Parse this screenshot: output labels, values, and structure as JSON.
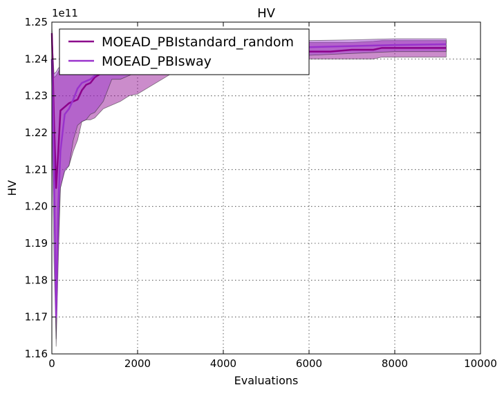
{
  "chart_data": {
    "type": "line",
    "title": "HV",
    "xlabel": "Evaluations",
    "ylabel": "HV",
    "y_offset_text": "1e11",
    "xlim": [
      0,
      10000
    ],
    "ylim": [
      1.16,
      1.25
    ],
    "x_ticks": [
      0,
      2000,
      4000,
      6000,
      8000,
      10000
    ],
    "x_tick_labels": [
      "0",
      "2000",
      "4000",
      "6000",
      "8000",
      "10000"
    ],
    "y_ticks": [
      1.16,
      1.17,
      1.18,
      1.19,
      1.2,
      1.21,
      1.22,
      1.23,
      1.24,
      1.25
    ],
    "y_tick_labels": [
      "1.16",
      "1.17",
      "1.18",
      "1.19",
      "1.20",
      "1.21",
      "1.22",
      "1.23",
      "1.24",
      "1.25"
    ],
    "grid": true,
    "legend_position": "top-left",
    "series": [
      {
        "name": "MOEAD_PBIstandard_random",
        "color": "#8b008b",
        "band_color": "#8b008b",
        "x": [
          0,
          50,
          100,
          150,
          200,
          300,
          400,
          500,
          600,
          700,
          800,
          900,
          1000,
          1200,
          1400,
          1600,
          1800,
          2000,
          3000,
          4000,
          5000,
          5800,
          6000,
          6500,
          7000,
          7500,
          7700,
          8000,
          8500,
          9200
        ],
        "y": [
          1.247,
          1.223,
          1.205,
          1.215,
          1.226,
          1.227,
          1.228,
          1.2285,
          1.229,
          1.2315,
          1.233,
          1.2335,
          1.235,
          1.2365,
          1.2375,
          1.2385,
          1.239,
          1.2395,
          1.2405,
          1.2415,
          1.2425,
          1.2425,
          1.242,
          1.242,
          1.2425,
          1.2425,
          1.243,
          1.243,
          1.243,
          1.243
        ],
        "upper": [
          1.249,
          1.235,
          1.2355,
          1.2365,
          1.2375,
          1.238,
          1.2385,
          1.239,
          1.2395,
          1.2395,
          1.24,
          1.24,
          1.2405,
          1.241,
          1.2415,
          1.242,
          1.2425,
          1.2425,
          1.243,
          1.2435,
          1.244,
          1.2445,
          1.2445,
          1.2445,
          1.2445,
          1.2448,
          1.245,
          1.245,
          1.245,
          1.245
        ],
        "lower": [
          1.235,
          1.2,
          1.162,
          1.185,
          1.205,
          1.21,
          1.211,
          1.215,
          1.218,
          1.223,
          1.2235,
          1.2235,
          1.224,
          1.2265,
          1.2275,
          1.2285,
          1.23,
          1.2305,
          1.2375,
          1.2385,
          1.2395,
          1.24,
          1.24,
          1.24,
          1.24,
          1.24,
          1.2405,
          1.2405,
          1.2405,
          1.2405
        ]
      },
      {
        "name": "MOEAD_PBIsway",
        "color": "#9932cc",
        "band_color": "#9932cc",
        "x": [
          0,
          50,
          100,
          150,
          200,
          300,
          400,
          500,
          600,
          700,
          800,
          900,
          1000,
          1200,
          1400,
          1600,
          1800,
          2000,
          3000,
          4000,
          5000,
          6000,
          7000,
          8000,
          9200
        ],
        "y": [
          1.24,
          1.21,
          1.17,
          1.2,
          1.215,
          1.225,
          1.2265,
          1.229,
          1.232,
          1.2335,
          1.234,
          1.2345,
          1.2355,
          1.237,
          1.238,
          1.239,
          1.2395,
          1.24,
          1.241,
          1.2418,
          1.2425,
          1.2432,
          1.2435,
          1.2438,
          1.244
        ],
        "upper": [
          1.248,
          1.236,
          1.2365,
          1.2375,
          1.238,
          1.2385,
          1.239,
          1.2393,
          1.2395,
          1.24,
          1.2402,
          1.2405,
          1.241,
          1.2415,
          1.242,
          1.2423,
          1.2425,
          1.2428,
          1.2435,
          1.244,
          1.2445,
          1.245,
          1.2452,
          1.2455,
          1.2455
        ],
        "lower": [
          1.225,
          1.185,
          1.164,
          1.19,
          1.205,
          1.2095,
          1.211,
          1.218,
          1.222,
          1.223,
          1.2235,
          1.225,
          1.2255,
          1.2285,
          1.2345,
          1.2345,
          1.2355,
          1.2365,
          1.2385,
          1.2395,
          1.2405,
          1.241,
          1.2415,
          1.242,
          1.242
        ]
      }
    ]
  }
}
